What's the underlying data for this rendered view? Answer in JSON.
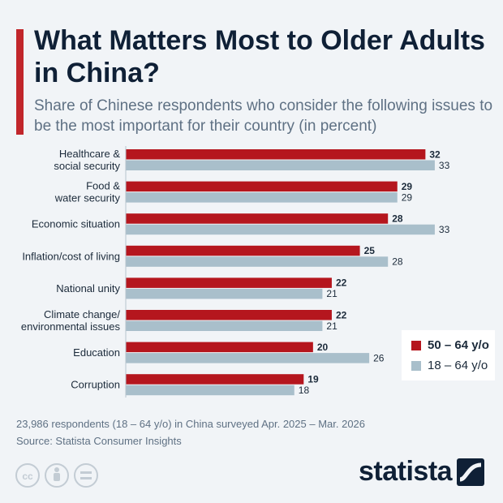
{
  "header": {
    "title": "What Matters Most to Older Adults in China?",
    "subtitle": "Share of Chinese respondents who consider the following issues to be the most important for their country (in percent)"
  },
  "footer": {
    "footnote": "23,986 respondents (18 – 64 y/o) in China surveyed Apr. 2025 – Mar. 2026",
    "source": "Source: Statista Consumer Insights",
    "brand": "statista",
    "license_icons": [
      "cc-icon",
      "attribution-icon",
      "no-derivatives-icon"
    ]
  },
  "colors": {
    "accent": "#c1262b",
    "series_primary": "#b5161e",
    "series_secondary": "#a9bfcb",
    "background": "#f1f4f7",
    "title": "#0f2036"
  },
  "chart_data": {
    "type": "bar",
    "orientation": "horizontal",
    "categories": [
      [
        "Healthcare &",
        "social security"
      ],
      [
        "Food &",
        "water security"
      ],
      [
        "Economic situation"
      ],
      [
        "Inflation/cost of living"
      ],
      [
        "National unity"
      ],
      [
        "Climate change/",
        "environmental issues"
      ],
      [
        "Education"
      ],
      [
        "Corruption"
      ]
    ],
    "series": [
      {
        "name": "50 – 64 y/o",
        "values": [
          32,
          29,
          28,
          25,
          22,
          22,
          20,
          19
        ]
      },
      {
        "name": "18 – 64 y/o",
        "values": [
          33,
          29,
          33,
          28,
          21,
          21,
          26,
          18
        ]
      }
    ],
    "xlim": [
      0,
      35
    ],
    "grid": false,
    "legend_position": "bottom-right",
    "data_labels": true
  }
}
